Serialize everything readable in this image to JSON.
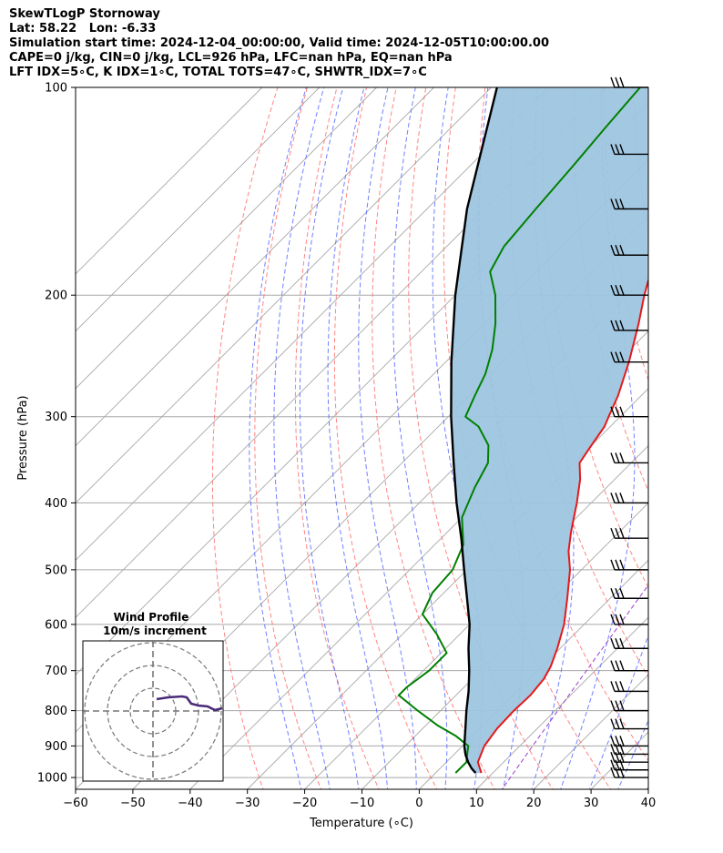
{
  "header": {
    "title": "SkewTLogP Stornoway",
    "location": "Lat: 58.22   Lon: -6.33",
    "times": "Simulation start time: 2024-12-04_00:00:00, Valid time: 2024-12-05T10:00:00.00",
    "params": "CAPE=0 j/kg, CIN=0 j/kg, LCL=926 hPa, LFC=nan hPa, EQ=nan hPa",
    "indices": "LFT IDX=5∘C, K IDX=1∘C, TOTAL TOTS=47∘C, SHWTR_IDX=7∘C"
  },
  "colors": {
    "temperature": "#e41a1c",
    "dewpoint": "#008000",
    "parcel": "#000000",
    "fill": "#9ec5e0",
    "dry_adiabat": "#ff6666",
    "moist_adiabat": "#4f5fff",
    "mixing_ratio": "#9b3fc8",
    "isotherm": "#a8a8a8",
    "isobar": "#a8a8a8",
    "wind_profile_line": "#4b2a78"
  },
  "chart_data": {
    "type": "skew-t log-p",
    "xlabel": "Temperature (∘C)",
    "ylabel": "Pressure (hPa)",
    "xlim": [
      -60,
      40
    ],
    "ylim": [
      1040,
      100
    ],
    "x_ticks": [
      -60,
      -50,
      -40,
      -30,
      -20,
      -10,
      0,
      10,
      20,
      30,
      40
    ],
    "y_ticks": [
      1000,
      900,
      800,
      700,
      600,
      500,
      400,
      300,
      200,
      100
    ],
    "y_scale": "log",
    "grid": true,
    "temperature": [
      {
        "p": 985,
        "t": 8
      },
      {
        "p": 950,
        "t": 5.5
      },
      {
        "p": 900,
        "t": 3.8
      },
      {
        "p": 850,
        "t": 3
      },
      {
        "p": 800,
        "t": 2.8
      },
      {
        "p": 760,
        "t": 3
      },
      {
        "p": 720,
        "t": 2.5
      },
      {
        "p": 690,
        "t": 1.5
      },
      {
        "p": 650,
        "t": -0.5
      },
      {
        "p": 600,
        "t": -3.5
      },
      {
        "p": 550,
        "t": -7.5
      },
      {
        "p": 500,
        "t": -12
      },
      {
        "p": 470,
        "t": -15.5
      },
      {
        "p": 440,
        "t": -18.5
      },
      {
        "p": 400,
        "t": -22.5
      },
      {
        "p": 370,
        "t": -26
      },
      {
        "p": 350,
        "t": -29
      },
      {
        "p": 330,
        "t": -30
      },
      {
        "p": 310,
        "t": -31
      },
      {
        "p": 300,
        "t": -32
      },
      {
        "p": 280,
        "t": -34
      },
      {
        "p": 250,
        "t": -38
      },
      {
        "p": 220,
        "t": -43
      },
      {
        "p": 200,
        "t": -47
      },
      {
        "p": 180,
        "t": -51
      },
      {
        "p": 160,
        "t": -54
      },
      {
        "p": 140,
        "t": -58
      },
      {
        "p": 120,
        "t": -63
      },
      {
        "p": 110,
        "t": -66
      },
      {
        "p": 100,
        "t": -70
      }
    ],
    "dewpoint": [
      {
        "p": 985,
        "t": 3.5
      },
      {
        "p": 950,
        "t": 3.5
      },
      {
        "p": 920,
        "t": 2
      },
      {
        "p": 900,
        "t": 1
      },
      {
        "p": 870,
        "t": -3
      },
      {
        "p": 840,
        "t": -8
      },
      {
        "p": 800,
        "t": -14
      },
      {
        "p": 760,
        "t": -20
      },
      {
        "p": 740,
        "t": -20
      },
      {
        "p": 700,
        "t": -19
      },
      {
        "p": 660,
        "t": -19
      },
      {
        "p": 620,
        "t": -24
      },
      {
        "p": 580,
        "t": -30
      },
      {
        "p": 540,
        "t": -32
      },
      {
        "p": 500,
        "t": -32.5
      },
      {
        "p": 460,
        "t": -35
      },
      {
        "p": 420,
        "t": -40
      },
      {
        "p": 380,
        "t": -43
      },
      {
        "p": 350,
        "t": -45
      },
      {
        "p": 330,
        "t": -48
      },
      {
        "p": 310,
        "t": -53
      },
      {
        "p": 300,
        "t": -57
      },
      {
        "p": 280,
        "t": -59
      },
      {
        "p": 260,
        "t": -61
      },
      {
        "p": 240,
        "t": -64
      },
      {
        "p": 220,
        "t": -68
      },
      {
        "p": 200,
        "t": -73
      },
      {
        "p": 185,
        "t": -78
      },
      {
        "p": 170,
        "t": -80
      },
      {
        "p": 150,
        "t": -81
      },
      {
        "p": 130,
        "t": -82
      },
      {
        "p": 115,
        "t": -83
      },
      {
        "p": 100,
        "t": -84
      }
    ],
    "parcel": [
      {
        "p": 985,
        "t": 7
      },
      {
        "p": 970,
        "t": 5.5
      },
      {
        "p": 950,
        "t": 3.8
      },
      {
        "p": 926,
        "t": 2
      },
      {
        "p": 900,
        "t": 0.3
      },
      {
        "p": 850,
        "t": -2.5
      },
      {
        "p": 800,
        "t": -5.5
      },
      {
        "p": 750,
        "t": -8.5
      },
      {
        "p": 700,
        "t": -12
      },
      {
        "p": 650,
        "t": -16
      },
      {
        "p": 600,
        "t": -20
      },
      {
        "p": 550,
        "t": -25
      },
      {
        "p": 500,
        "t": -30.5
      },
      {
        "p": 450,
        "t": -36.5
      },
      {
        "p": 400,
        "t": -43.5
      },
      {
        "p": 350,
        "t": -51
      },
      {
        "p": 300,
        "t": -59.5
      },
      {
        "p": 250,
        "t": -69
      },
      {
        "p": 200,
        "t": -80
      },
      {
        "p": 150,
        "t": -93
      },
      {
        "p": 100,
        "t": -109
      }
    ],
    "wind_barbs_p": [
      1000,
      975,
      950,
      925,
      900,
      850,
      800,
      750,
      700,
      650,
      600,
      550,
      500,
      450,
      400,
      350,
      300,
      250,
      225,
      200,
      175,
      150,
      125,
      100
    ],
    "inset": {
      "title": "Wind Profile",
      "subtitle": "10m/s increment"
    }
  }
}
